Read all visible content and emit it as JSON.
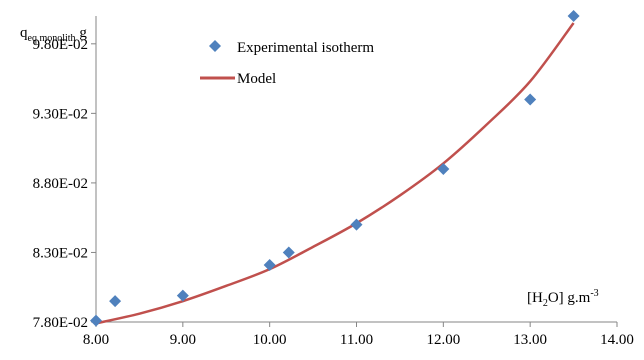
{
  "chart_data": {
    "type": "scatter",
    "title": "",
    "ylabel": {
      "main": "q",
      "sub": "eq monolith",
      "suffix": " g"
    },
    "xlabel": {
      "pre": "[H",
      "sub": "2",
      "mid": "O] g.m",
      "sup": "-3"
    },
    "xlim": [
      8,
      14
    ],
    "ylim": [
      0.078,
      0.1
    ],
    "xticks": [
      8,
      9,
      10,
      11,
      12,
      13,
      14
    ],
    "xtick_labels": [
      "8.00",
      "9.00",
      "10.00",
      "11.00",
      "12.00",
      "13.00",
      "14.00"
    ],
    "yticks": [
      0.078,
      0.083,
      0.088,
      0.093,
      0.098
    ],
    "ytick_labels": [
      "7.80E-02",
      "8.30E-02",
      "8.80E-02",
      "9.30E-02",
      "9.80E-02"
    ],
    "grid": false,
    "legend_position": "top-left",
    "series": [
      {
        "name": "Experimental isotherm",
        "kind": "scatter",
        "marker": "diamond",
        "color": "#4F81BD",
        "points": [
          [
            8.0,
            0.0781
          ],
          [
            8.22,
            0.0795
          ],
          [
            9.0,
            0.0799
          ],
          [
            10.0,
            0.0821
          ],
          [
            10.22,
            0.083
          ],
          [
            11.0,
            0.085
          ],
          [
            12.0,
            0.089
          ],
          [
            13.0,
            0.094
          ],
          [
            13.5,
            0.1
          ]
        ]
      },
      {
        "name": "Model",
        "kind": "line",
        "color": "#C0504D",
        "points": [
          [
            8.0,
            0.0779
          ],
          [
            8.5,
            0.0786
          ],
          [
            9.0,
            0.0795
          ],
          [
            9.5,
            0.0806
          ],
          [
            10.0,
            0.0818
          ],
          [
            10.5,
            0.0834
          ],
          [
            11.0,
            0.0851
          ],
          [
            11.5,
            0.0871
          ],
          [
            12.0,
            0.0894
          ],
          [
            12.5,
            0.0922
          ],
          [
            13.0,
            0.0953
          ],
          [
            13.5,
            0.0995
          ]
        ]
      }
    ]
  }
}
